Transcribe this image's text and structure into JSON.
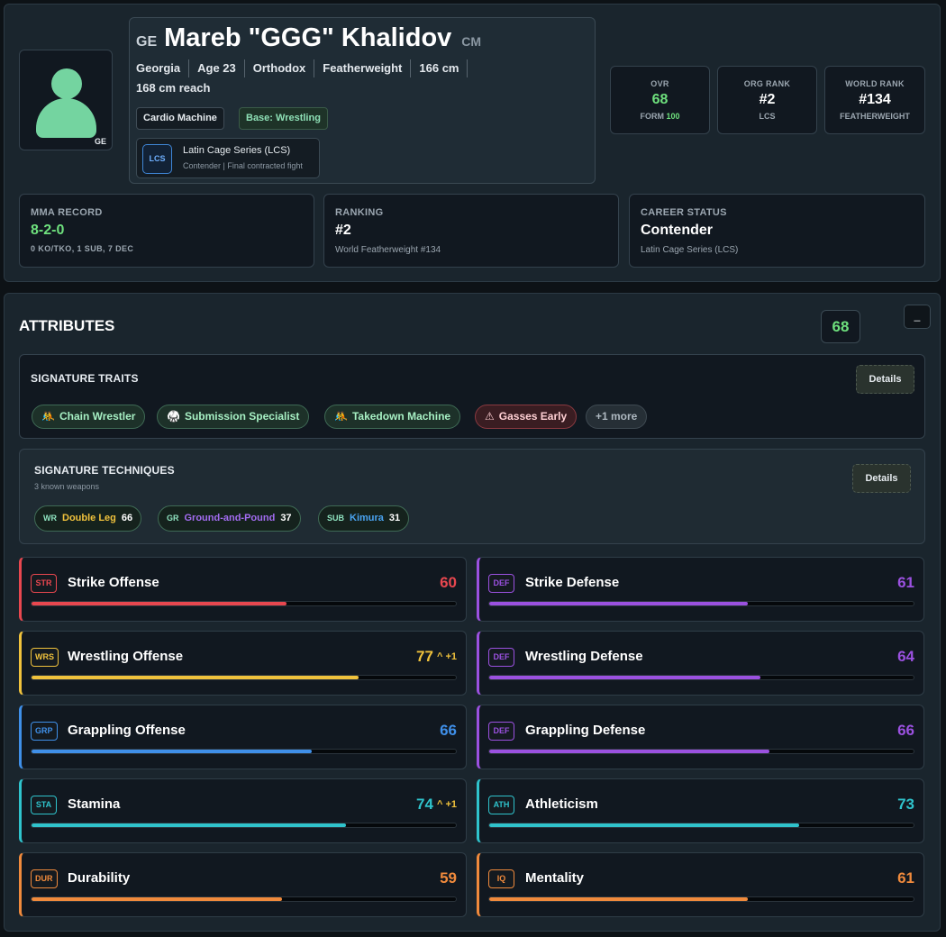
{
  "fighter": {
    "country_code": "GE",
    "name": "Mareb \"GGG\" Khalidov",
    "weight_code": "CM",
    "meta": [
      "Georgia",
      "Age 23",
      "Orthodox",
      "Featherweight",
      "166 cm"
    ],
    "reach": "168 cm reach",
    "tags": [
      "Cardio Machine",
      "Base: Wrestling"
    ],
    "org": {
      "logo": "LCS",
      "name": "Latin Cage Series (LCS)",
      "sub": "Contender | Final contracted fight"
    },
    "avatar_code": "GE"
  },
  "stats": {
    "ovr": {
      "label": "OVR",
      "value": "68",
      "form_label": "FORM",
      "form_value": "100"
    },
    "org_rank": {
      "label": "ORG RANK",
      "value": "#2",
      "sub": "LCS"
    },
    "world_rank": {
      "label": "WORLD RANK",
      "value": "#134",
      "sub": "FEATHERWEIGHT"
    }
  },
  "summary": {
    "record": {
      "label": "MMA RECORD",
      "value": "8-2-0",
      "sub": "0 KO/TKO, 1 SUB, 7 DEC"
    },
    "ranking": {
      "label": "RANKING",
      "value": "#2",
      "sub": "World Featherweight #134"
    },
    "status": {
      "label": "CAREER STATUS",
      "value": "Contender",
      "sub": "Latin Cage Series (LCS)"
    }
  },
  "attributes": {
    "title": "ATTRIBUTES",
    "overall": "68",
    "collapse_label": "_",
    "traits": {
      "title": "SIGNATURE TRAITS",
      "details_label": "Details",
      "items": [
        {
          "icon": "🤼",
          "label": "Chain Wrestler"
        },
        {
          "icon": "🥋",
          "label": "Submission Specialist"
        },
        {
          "icon": "🤼",
          "label": "Takedown Machine"
        },
        {
          "icon": "⚠",
          "label": "Gasses Early"
        },
        {
          "icon": "",
          "label": "+1 more"
        }
      ]
    },
    "techniques": {
      "title": "SIGNATURE TECHNIQUES",
      "subtitle": "3 known weapons",
      "details_label": "Details",
      "items": [
        {
          "code": "WR",
          "name": "Double Leg",
          "value": "66",
          "color": "#f0c23c"
        },
        {
          "code": "GR",
          "name": "Ground-and-Pound",
          "value": "37",
          "color": "#a26cf0"
        },
        {
          "code": "SUB",
          "name": "Kimura",
          "value": "31",
          "color": "#4aa3f0"
        }
      ]
    },
    "list": [
      {
        "code": "STR",
        "name": "Strike Offense",
        "value": 60,
        "delta": "",
        "color": "#e8474f"
      },
      {
        "code": "DEF",
        "name": "Strike Defense",
        "value": 61,
        "delta": "",
        "color": "#9b51e0"
      },
      {
        "code": "WRS",
        "name": "Wrestling Offense",
        "value": 77,
        "delta": "^ +1",
        "color": "#f0c23c"
      },
      {
        "code": "DEF",
        "name": "Wrestling Defense",
        "value": 64,
        "delta": "",
        "color": "#9b51e0"
      },
      {
        "code": "GRP",
        "name": "Grappling Offense",
        "value": 66,
        "delta": "",
        "color": "#3f8fe8"
      },
      {
        "code": "DEF",
        "name": "Grappling Defense",
        "value": 66,
        "delta": "",
        "color": "#9b51e0"
      },
      {
        "code": "STA",
        "name": "Stamina",
        "value": 74,
        "delta": "^ +1",
        "color": "#2fc3cc"
      },
      {
        "code": "ATH",
        "name": "Athleticism",
        "value": 73,
        "delta": "",
        "color": "#2fc3cc"
      },
      {
        "code": "DUR",
        "name": "Durability",
        "value": 59,
        "delta": "",
        "color": "#f08a3c"
      },
      {
        "code": "IQ",
        "name": "Mentality",
        "value": 61,
        "delta": "",
        "color": "#f08a3c"
      }
    ]
  }
}
